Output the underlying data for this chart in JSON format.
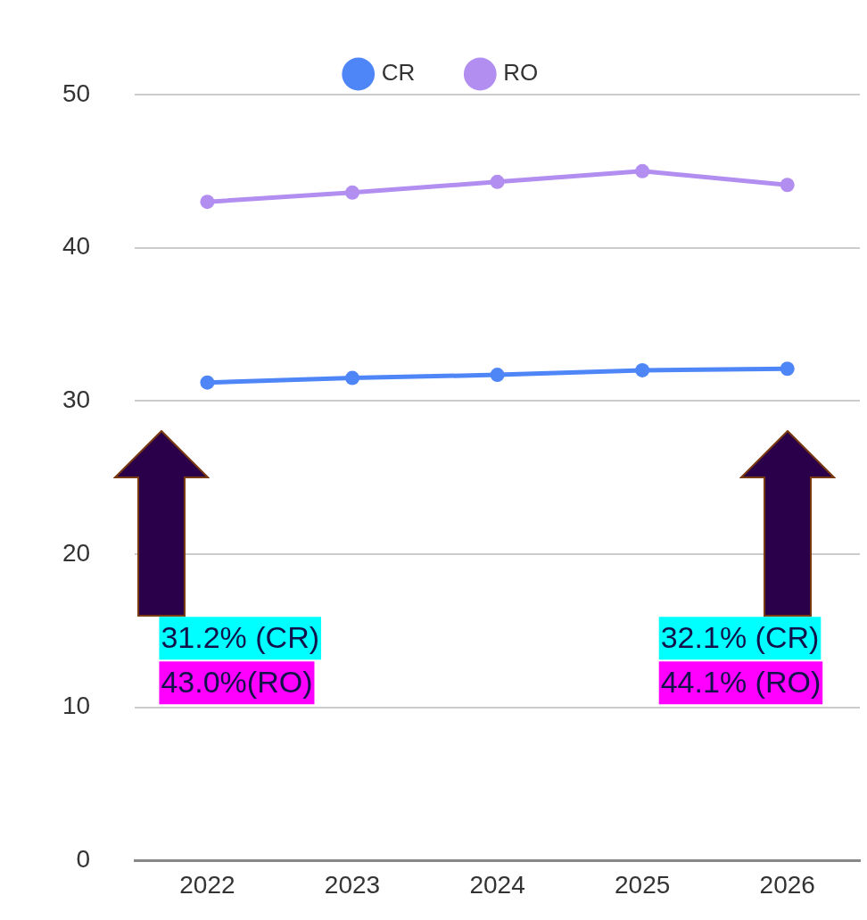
{
  "chart_data": {
    "type": "line",
    "categories": [
      "2022",
      "2023",
      "2024",
      "2025",
      "2026"
    ],
    "series": [
      {
        "name": "CR",
        "color": "#4f86f7",
        "values": [
          31.2,
          31.5,
          31.7,
          32.0,
          32.1
        ]
      },
      {
        "name": "RO",
        "color": "#b18ef0",
        "values": [
          43.0,
          43.6,
          44.3,
          45.0,
          44.1
        ]
      }
    ],
    "ylim": [
      0,
      50
    ],
    "yticks": [
      0,
      10,
      20,
      30,
      40,
      50
    ],
    "grid": "y",
    "legend": "top",
    "marker": "circle",
    "line_style": "solid",
    "annotations": [
      "31.2% (CR)",
      "43.0%(RO)",
      "32.1% (CR)",
      "44.1% (RO)"
    ]
  }
}
